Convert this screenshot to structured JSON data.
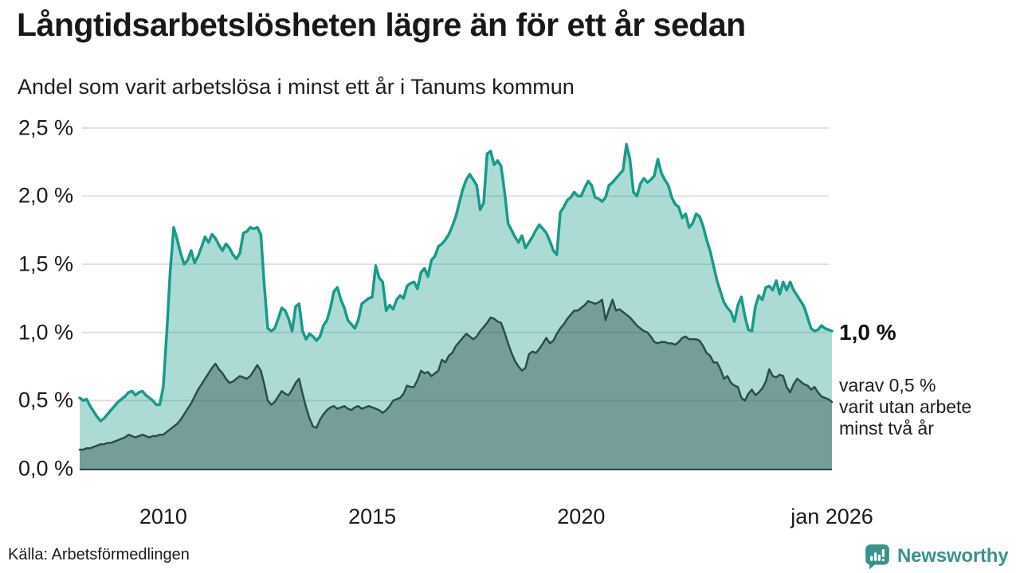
{
  "header": {
    "title": "Långtidsarbetslösheten lägre än för ett år sedan",
    "subtitle": "Andel som varit arbetslösa i minst ett år i Tanums kommun"
  },
  "annotations": {
    "latest_value": "1,0 %",
    "note_lines": [
      "varav 0,5 %",
      "varit utan arbete",
      "minst två år"
    ]
  },
  "footer": {
    "source": "Källa: Arbetsförmedlingen",
    "logo_text": "Newsworthy"
  },
  "chart_data": {
    "type": "area",
    "unit": "%",
    "frequency": "monthly",
    "x_start": "jan 2008",
    "x_end": "jan 2026",
    "ylim": [
      0,
      2.5
    ],
    "grid": true,
    "legend_position": "right-annotations",
    "colors": {
      "grid": "#dcdcdc",
      "baseline": "#344442",
      "accent_teal": "#199a8a",
      "dark_slate": "#2d4d46",
      "logo_teal": "#3a938b"
    },
    "y_ticks": [
      {
        "label": "0,0 %",
        "value": 0.0
      },
      {
        "label": "0,5 %",
        "value": 0.5
      },
      {
        "label": "1,0 %",
        "value": 1.0
      },
      {
        "label": "1,5 %",
        "value": 1.5
      },
      {
        "label": "2,0 %",
        "value": 2.0
      },
      {
        "label": "2,5 %",
        "value": 2.5
      }
    ],
    "x_ticks": [
      {
        "label": "2010",
        "year": 2010
      },
      {
        "label": "2015",
        "year": 2015
      },
      {
        "label": "2020",
        "year": 2020
      },
      {
        "label": "jan 2026",
        "year": 2026
      }
    ],
    "series": [
      {
        "name": "Andel arbetslösa minst ett år",
        "color": "#199a8a",
        "fill": "rgba(26,154,140,0.36)",
        "end_label": "1,0 %",
        "values": [
          0.52,
          0.5,
          0.51,
          0.46,
          0.42,
          0.38,
          0.35,
          0.37,
          0.4,
          0.43,
          0.46,
          0.49,
          0.51,
          0.53,
          0.56,
          0.57,
          0.54,
          0.56,
          0.57,
          0.54,
          0.52,
          0.5,
          0.47,
          0.47,
          0.6,
          1.0,
          1.45,
          1.77,
          1.68,
          1.58,
          1.5,
          1.53,
          1.6,
          1.51,
          1.56,
          1.63,
          1.7,
          1.66,
          1.72,
          1.69,
          1.64,
          1.6,
          1.65,
          1.62,
          1.57,
          1.54,
          1.58,
          1.73,
          1.74,
          1.77,
          1.76,
          1.77,
          1.72,
          1.35,
          1.03,
          1.01,
          1.03,
          1.1,
          1.18,
          1.16,
          1.1,
          1.01,
          1.19,
          1.21,
          1.01,
          0.95,
          0.99,
          0.97,
          0.94,
          0.97,
          1.05,
          1.09,
          1.18,
          1.3,
          1.33,
          1.24,
          1.18,
          1.09,
          1.06,
          1.03,
          1.09,
          1.21,
          1.23,
          1.25,
          1.26,
          1.49,
          1.4,
          1.37,
          1.16,
          1.2,
          1.17,
          1.24,
          1.27,
          1.25,
          1.34,
          1.36,
          1.37,
          1.32,
          1.44,
          1.47,
          1.41,
          1.53,
          1.56,
          1.63,
          1.65,
          1.68,
          1.72,
          1.78,
          1.85,
          1.95,
          2.05,
          2.12,
          2.16,
          2.12,
          2.08,
          1.9,
          1.95,
          2.31,
          2.33,
          2.23,
          2.26,
          2.22,
          2.03,
          1.8,
          1.75,
          1.7,
          1.66,
          1.71,
          1.62,
          1.66,
          1.7,
          1.75,
          1.79,
          1.76,
          1.73,
          1.67,
          1.6,
          1.57,
          1.88,
          1.92,
          1.97,
          1.99,
          2.03,
          2.0,
          2.0,
          2.06,
          2.11,
          2.08,
          1.99,
          1.98,
          1.96,
          1.99,
          2.08,
          2.1,
          2.13,
          2.16,
          2.19,
          2.38,
          2.27,
          2.03,
          2.0,
          2.09,
          2.13,
          2.1,
          2.12,
          2.15,
          2.27,
          2.17,
          2.12,
          2.08,
          1.99,
          1.94,
          1.92,
          1.84,
          1.87,
          1.77,
          1.8,
          1.87,
          1.85,
          1.78,
          1.68,
          1.6,
          1.49,
          1.38,
          1.3,
          1.22,
          1.18,
          1.15,
          1.08,
          1.2,
          1.26,
          1.12,
          1.02,
          1.01,
          1.19,
          1.27,
          1.24,
          1.33,
          1.34,
          1.31,
          1.38,
          1.28,
          1.37,
          1.31,
          1.37,
          1.31,
          1.27,
          1.23,
          1.19,
          1.11,
          1.03,
          1.01,
          1.02,
          1.05,
          1.03,
          1.02,
          1.01
        ]
      },
      {
        "name": "varav arbetslösa minst två år",
        "color": "#2d4d46",
        "fill": "rgba(47,79,73,0.44)",
        "end_label": "0,5 %",
        "values": [
          0.14,
          0.14,
          0.15,
          0.15,
          0.16,
          0.17,
          0.18,
          0.18,
          0.19,
          0.19,
          0.2,
          0.21,
          0.22,
          0.23,
          0.25,
          0.24,
          0.23,
          0.24,
          0.25,
          0.24,
          0.23,
          0.24,
          0.24,
          0.25,
          0.25,
          0.27,
          0.29,
          0.31,
          0.33,
          0.36,
          0.4,
          0.44,
          0.48,
          0.53,
          0.58,
          0.62,
          0.66,
          0.7,
          0.74,
          0.77,
          0.73,
          0.7,
          0.66,
          0.63,
          0.64,
          0.66,
          0.68,
          0.67,
          0.66,
          0.68,
          0.72,
          0.76,
          0.72,
          0.62,
          0.5,
          0.47,
          0.49,
          0.53,
          0.57,
          0.55,
          0.54,
          0.58,
          0.63,
          0.66,
          0.55,
          0.45,
          0.37,
          0.31,
          0.3,
          0.36,
          0.4,
          0.43,
          0.45,
          0.46,
          0.44,
          0.45,
          0.46,
          0.44,
          0.43,
          0.45,
          0.46,
          0.44,
          0.45,
          0.46,
          0.45,
          0.44,
          0.43,
          0.41,
          0.43,
          0.46,
          0.5,
          0.51,
          0.52,
          0.55,
          0.61,
          0.6,
          0.6,
          0.65,
          0.72,
          0.7,
          0.71,
          0.68,
          0.7,
          0.72,
          0.8,
          0.78,
          0.83,
          0.85,
          0.9,
          0.93,
          0.96,
          0.99,
          0.97,
          0.95,
          0.97,
          1.01,
          1.04,
          1.07,
          1.11,
          1.1,
          1.08,
          1.07,
          1.0,
          0.92,
          0.85,
          0.79,
          0.75,
          0.72,
          0.74,
          0.84,
          0.86,
          0.85,
          0.88,
          0.92,
          0.96,
          0.92,
          0.94,
          0.99,
          1.03,
          1.06,
          1.1,
          1.13,
          1.16,
          1.16,
          1.18,
          1.2,
          1.23,
          1.22,
          1.21,
          1.22,
          1.24,
          1.09,
          1.17,
          1.24,
          1.16,
          1.17,
          1.15,
          1.13,
          1.11,
          1.08,
          1.05,
          1.03,
          1.01,
          1.0,
          0.97,
          0.93,
          0.92,
          0.93,
          0.93,
          0.92,
          0.92,
          0.91,
          0.93,
          0.96,
          0.97,
          0.95,
          0.95,
          0.95,
          0.94,
          0.9,
          0.85,
          0.83,
          0.78,
          0.78,
          0.73,
          0.66,
          0.68,
          0.63,
          0.61,
          0.6,
          0.52,
          0.5,
          0.55,
          0.58,
          0.54,
          0.56,
          0.59,
          0.64,
          0.73,
          0.68,
          0.67,
          0.69,
          0.68,
          0.6,
          0.56,
          0.62,
          0.66,
          0.64,
          0.62,
          0.61,
          0.58,
          0.6,
          0.56,
          0.53,
          0.52,
          0.51,
          0.49
        ]
      }
    ]
  }
}
